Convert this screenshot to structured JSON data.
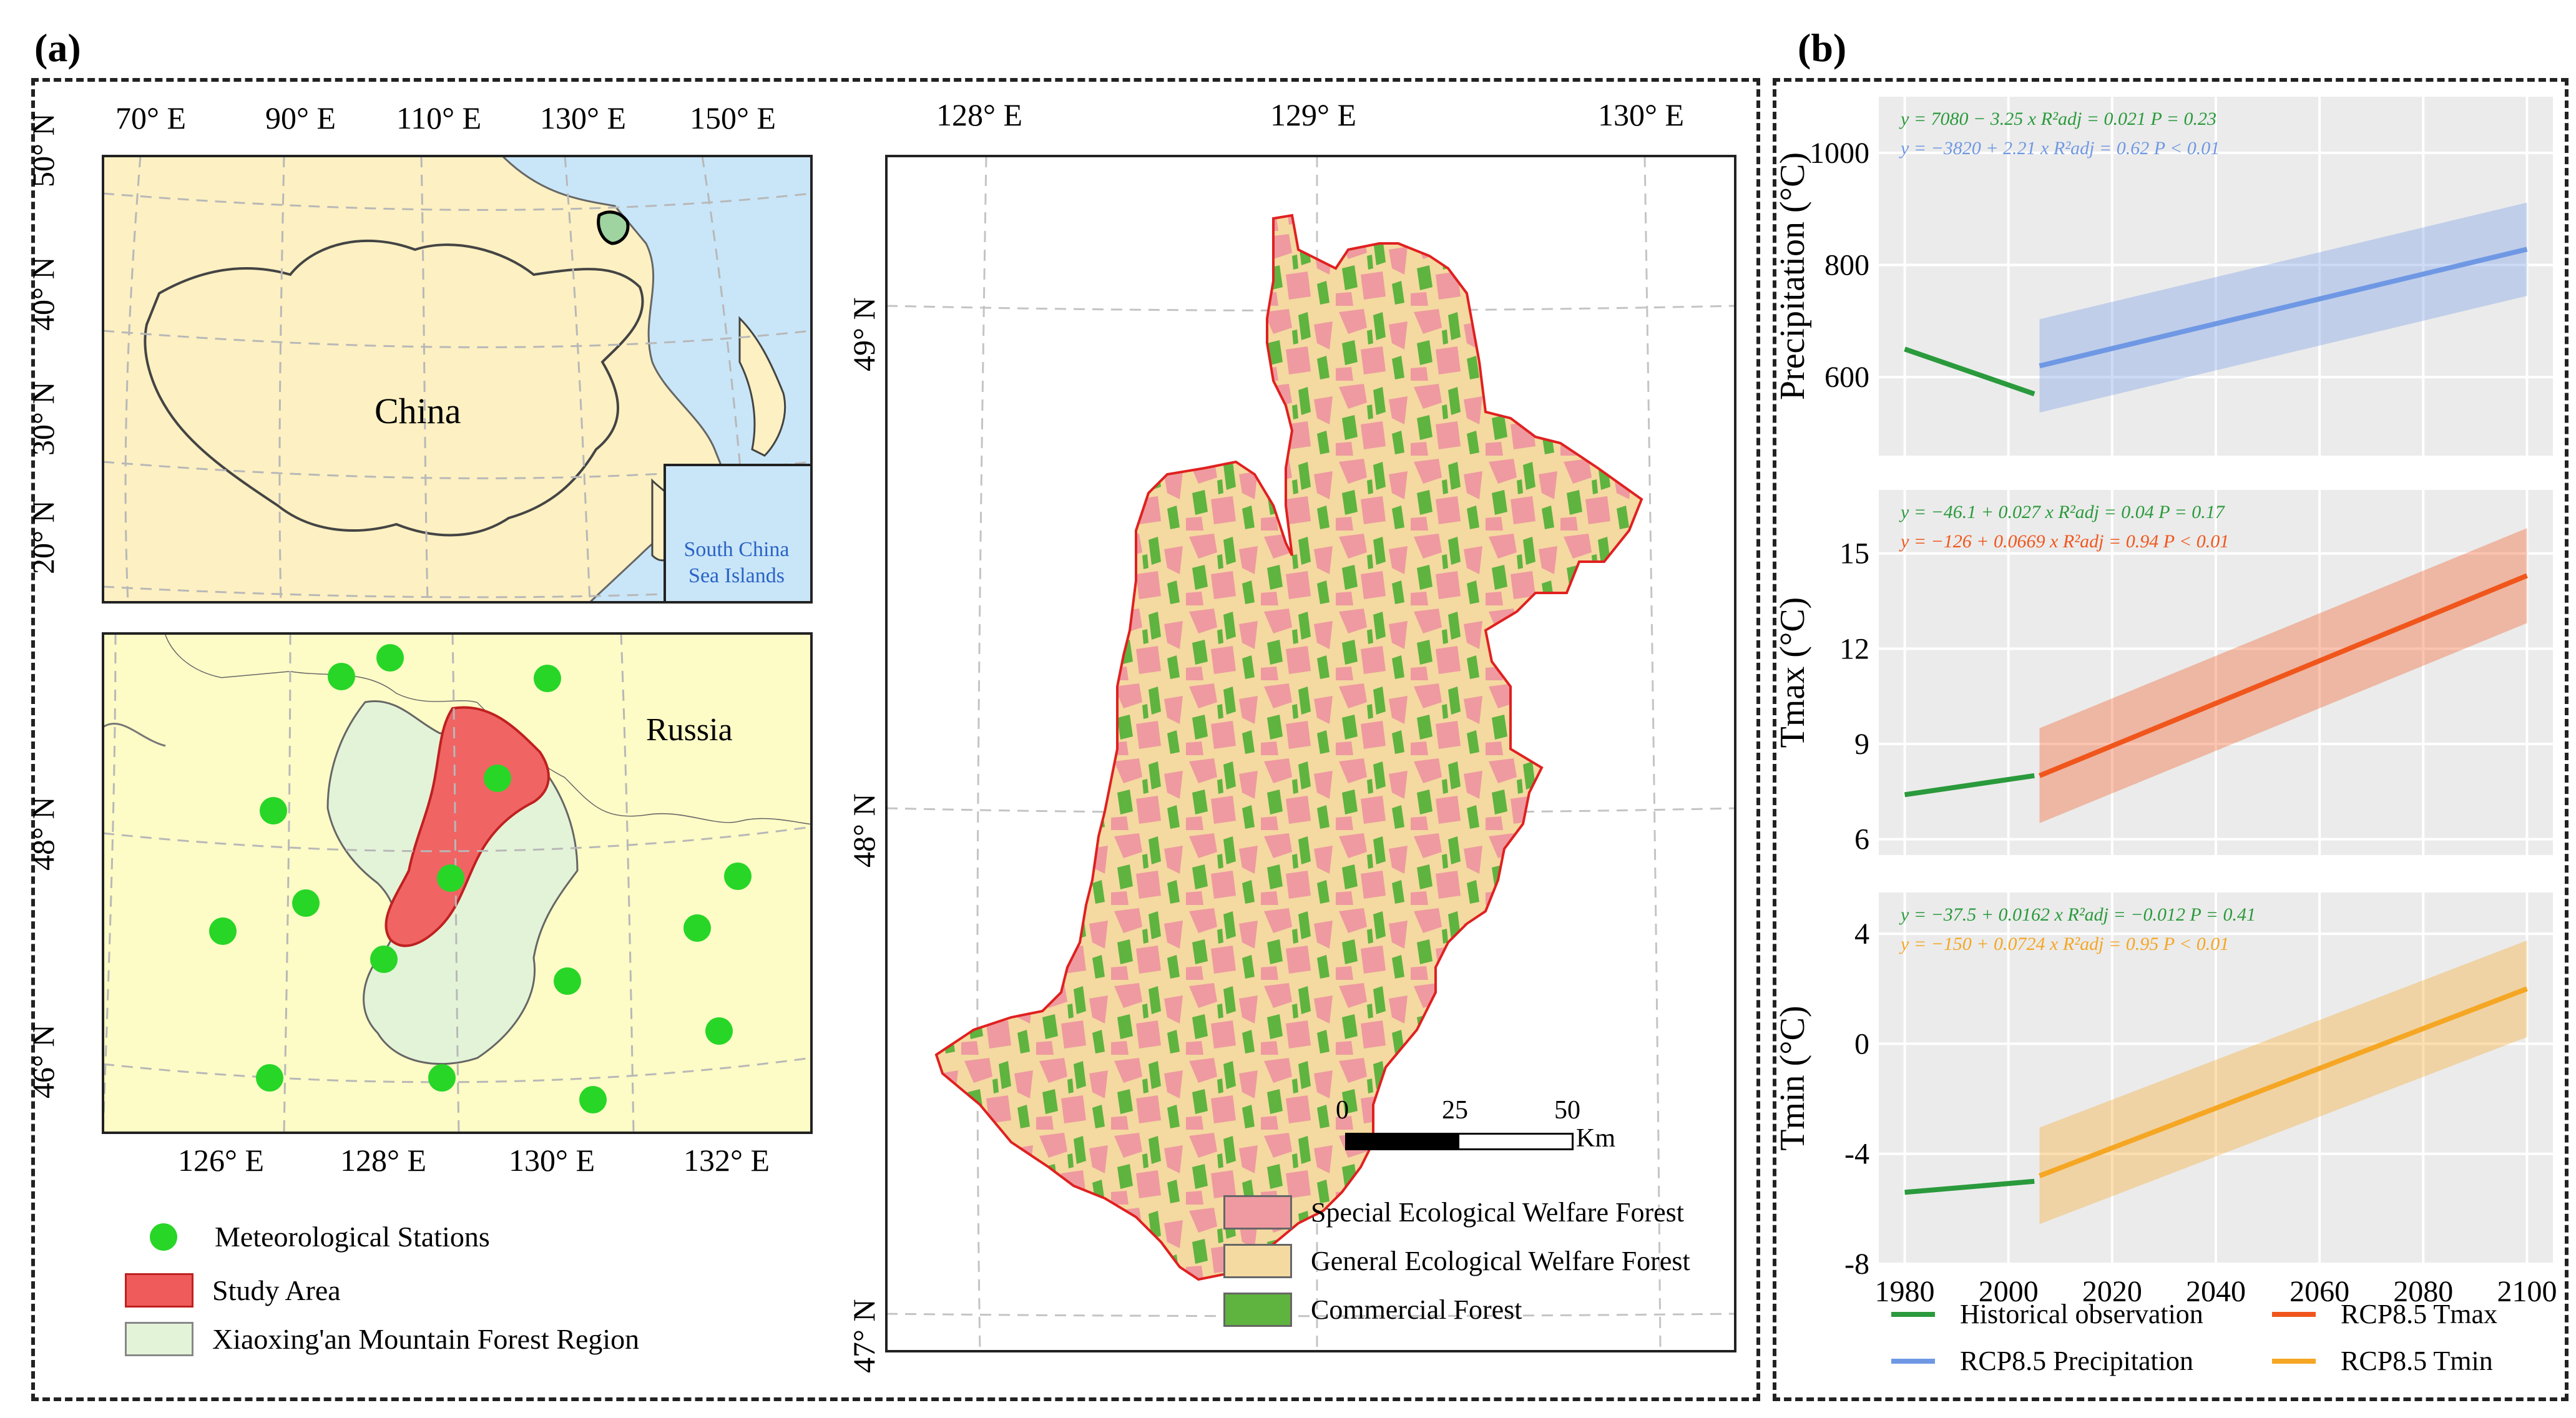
{
  "panels": {
    "a": "(a)",
    "b": "(b)"
  },
  "china_map": {
    "lon_ticks": [
      "70° E",
      "90° E",
      "110° E",
      "130° E",
      "150° E"
    ],
    "lat_ticks": [
      "50° N",
      "40° N",
      "30° N",
      "20° N"
    ],
    "label_country": "China",
    "inset_label_line1": "South China",
    "inset_label_line2": "Sea Islands"
  },
  "region_map": {
    "lon_ticks": [
      "126° E",
      "128° E",
      "130° E",
      "132° E"
    ],
    "lat_ticks": [
      "48° N",
      "46° N"
    ],
    "label_country": "Russia"
  },
  "study_map": {
    "lon_ticks": [
      "128° E",
      "129° E",
      "130° E"
    ],
    "lat_ticks": [
      "49° N",
      "48° N",
      "47° N"
    ],
    "scale_labels": [
      "0",
      "25",
      "50"
    ],
    "scale_unit": "Km",
    "legend": [
      {
        "label": "Special Ecological Welfare Forest",
        "color": "#ee9aa0"
      },
      {
        "label": "General Ecological Welfare Forest",
        "color": "#f4d9a1"
      },
      {
        "label": "Commercial Forest",
        "color": "#5fb33f"
      }
    ]
  },
  "map_legend": [
    {
      "label": "Meteorological Stations",
      "type": "dot",
      "color": "#27d627"
    },
    {
      "label": "Study Area",
      "type": "box",
      "color": "#ef5a5a"
    },
    {
      "label": "Xiaoxing'an Mountain Forest Region",
      "type": "box",
      "color": "#e3f3d8"
    }
  ],
  "colors": {
    "historical": "#2a9a3c",
    "precip": "#6f98e4",
    "tmax": "#f0561c",
    "tmin": "#f5a623",
    "plot_bg": "#ebebeb"
  },
  "chart_data": [
    {
      "type": "line",
      "ylabel": "Precipitation (°C)",
      "ylim": [
        460,
        1100
      ],
      "yticks": [
        600,
        800,
        1000
      ],
      "xlim": [
        1975,
        2105
      ],
      "eq1": "y = 7080 − 3.25 x   R²adj = 0.021   P = 0.23",
      "eq2": "y = −3820 + 2.21 x   R²adj = 0.62   P < 0.01",
      "series": [
        {
          "name": "Historical observation",
          "x": [
            1980,
            2005
          ],
          "y": [
            650,
            570
          ]
        },
        {
          "name": "RCP8.5 Precipitation",
          "x": [
            2006,
            2100
          ],
          "y": [
            620,
            828
          ]
        }
      ]
    },
    {
      "type": "line",
      "ylabel": "Tmax (°C)",
      "ylim": [
        5.5,
        17
      ],
      "yticks": [
        6,
        9,
        12,
        15
      ],
      "xlim": [
        1975,
        2105
      ],
      "eq1": "y = −46.1 + 0.027 x   R²adj = 0.04   P = 0.17",
      "eq2": "y = −126 + 0.0669 x   R²adj = 0.94   P < 0.01",
      "series": [
        {
          "name": "Historical observation",
          "x": [
            1980,
            2005
          ],
          "y": [
            7.4,
            8.0
          ]
        },
        {
          "name": "RCP8.5 Tmax",
          "x": [
            2006,
            2100
          ],
          "y": [
            8.0,
            14.3
          ]
        }
      ]
    },
    {
      "type": "line",
      "ylabel": "Tmin (°C)",
      "ylim": [
        -8,
        5.5
      ],
      "yticks": [
        -8,
        -4,
        0,
        4
      ],
      "xlim": [
        1975,
        2105
      ],
      "xticks": [
        1980,
        2000,
        2020,
        2040,
        2060,
        2080,
        2100
      ],
      "eq1": "y = −37.5 + 0.0162 x   R²adj = −0.012   P = 0.41",
      "eq2": "y = −150 + 0.0724 x   R²adj = 0.95   P < 0.01",
      "series": [
        {
          "name": "Historical observation",
          "x": [
            1980,
            2005
          ],
          "y": [
            -5.4,
            -5.0
          ]
        },
        {
          "name": "RCP8.5 Tmin",
          "x": [
            2006,
            2100
          ],
          "y": [
            -4.8,
            2.0
          ]
        }
      ]
    }
  ],
  "chart_legend": [
    {
      "label": "Historical observation",
      "color": "#2a9a3c"
    },
    {
      "label": "RCP8.5 Tmax",
      "color": "#f0561c"
    },
    {
      "label": "RCP8.5 Precipitation",
      "color": "#6f98e4"
    },
    {
      "label": "RCP8.5 Tmin",
      "color": "#f5a623"
    }
  ]
}
